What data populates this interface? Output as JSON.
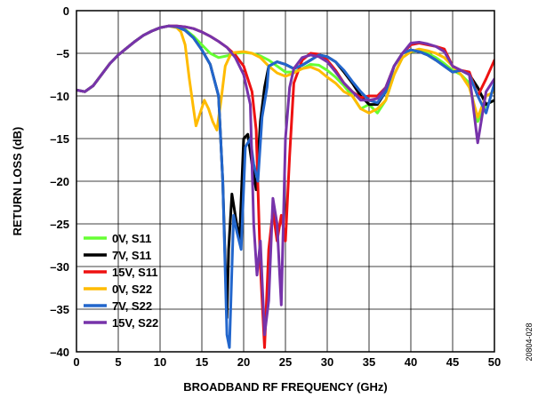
{
  "chart_data": {
    "type": "line",
    "title": "",
    "xlabel": "BROADBAND RF FREQUENCY (GHz)",
    "ylabel": "RETURN LOSS (dB)",
    "xlim": [
      0,
      50
    ],
    "ylim": [
      -40,
      0
    ],
    "xticks": [
      0,
      5,
      10,
      15,
      20,
      25,
      30,
      35,
      40,
      45,
      50
    ],
    "yticks": [
      0,
      -5,
      -10,
      -15,
      -20,
      -25,
      -30,
      -35,
      -40
    ],
    "xtick_labels": [
      "0",
      "5",
      "10",
      "15",
      "20",
      "25",
      "30",
      "35",
      "40",
      "45",
      "50"
    ],
    "ytick_labels": [
      "0",
      "–5",
      "–10",
      "–15",
      "–20",
      "–25",
      "–30",
      "–35",
      "–40"
    ],
    "grid": true,
    "legend_position": "bottom-left",
    "figure_id": "20804-028",
    "series": [
      {
        "name": "0V, S11",
        "color": "#66ff33",
        "x": [
          0,
          1,
          2,
          3,
          4,
          5,
          6,
          7,
          8,
          9,
          10,
          11,
          12,
          13,
          14,
          15,
          16,
          17,
          18,
          19,
          20,
          21,
          22,
          23,
          24,
          25,
          26,
          27,
          28,
          29,
          30,
          31,
          32,
          33,
          34,
          35,
          36,
          37,
          38,
          39,
          40,
          41,
          42,
          43,
          44,
          45,
          46,
          47,
          48,
          49,
          50
        ],
        "y": [
          -9.3,
          -9.5,
          -8.8,
          -7.5,
          -6.2,
          -5.2,
          -4.4,
          -3.6,
          -2.9,
          -2.4,
          -2.0,
          -1.8,
          -1.9,
          -2.2,
          -3.0,
          -4.0,
          -5.0,
          -5.5,
          -5.3,
          -5.0,
          -4.9,
          -5.0,
          -5.3,
          -5.8,
          -6.5,
          -7.2,
          -7.2,
          -6.8,
          -6.3,
          -6.4,
          -7.0,
          -7.8,
          -8.8,
          -10.0,
          -11.5,
          -11.0,
          -12.0,
          -10.5,
          -7.5,
          -5.5,
          -4.8,
          -4.7,
          -5.0,
          -5.5,
          -6.2,
          -7.0,
          -7.5,
          -8.5,
          -13.0,
          -11.0,
          -10.5
        ]
      },
      {
        "name": "7V, S11",
        "color": "#000000",
        "x": [
          0,
          1,
          2,
          3,
          4,
          5,
          6,
          7,
          8,
          9,
          10,
          11,
          12,
          13,
          14,
          15,
          16,
          17,
          17.5,
          18,
          18.2,
          18.6,
          19.0,
          19.5,
          20.0,
          20.5,
          21.0,
          21.5,
          22.0,
          22.5,
          23,
          24,
          25,
          26,
          27,
          28,
          29,
          30,
          31,
          32,
          33,
          34,
          35,
          36,
          37,
          38,
          39,
          40,
          41,
          42,
          43,
          44,
          45,
          46,
          47,
          48,
          49,
          50
        ],
        "y": [
          -9.3,
          -9.5,
          -8.8,
          -7.5,
          -6.2,
          -5.2,
          -4.4,
          -3.6,
          -2.9,
          -2.4,
          -2.0,
          -1.8,
          -1.9,
          -2.3,
          -3.2,
          -4.6,
          -6.3,
          -10.0,
          -20.0,
          -36.0,
          -28.0,
          -21.5,
          -24.0,
          -27.0,
          -15.0,
          -14.5,
          -18.0,
          -21.0,
          -13.0,
          -9.0,
          -6.5,
          -6.0,
          -6.3,
          -6.8,
          -6.4,
          -5.8,
          -5.2,
          -5.4,
          -6.0,
          -7.2,
          -8.5,
          -10.0,
          -11.0,
          -11.0,
          -9.5,
          -6.5,
          -5.0,
          -4.6,
          -4.8,
          -5.2,
          -5.8,
          -6.5,
          -7.2,
          -7.0,
          -7.5,
          -9.0,
          -11.0,
          -10.5
        ]
      },
      {
        "name": "15V, S11",
        "color": "#ee1111",
        "x": [
          0,
          1,
          2,
          3,
          4,
          5,
          6,
          7,
          8,
          9,
          10,
          11,
          12,
          13,
          14,
          15,
          16,
          17,
          18,
          19,
          20,
          21,
          21.5,
          22.0,
          22.5,
          23.0,
          23.5,
          24.0,
          24.5,
          25.0,
          25.5,
          26,
          27,
          28,
          29,
          30,
          31,
          32,
          33,
          34,
          35,
          36,
          37,
          38,
          39,
          40,
          41,
          42,
          43,
          44,
          45,
          46,
          47,
          48,
          49,
          50
        ],
        "y": [
          -9.3,
          -9.5,
          -8.8,
          -7.5,
          -6.2,
          -5.2,
          -4.4,
          -3.6,
          -2.9,
          -2.4,
          -2.0,
          -1.8,
          -1.8,
          -1.9,
          -2.1,
          -2.5,
          -3.0,
          -3.6,
          -4.3,
          -5.2,
          -6.5,
          -9.5,
          -14.0,
          -30.0,
          -39.5,
          -28.0,
          -23.5,
          -27.0,
          -24.0,
          -27.0,
          -17.0,
          -8.5,
          -5.8,
          -5.0,
          -5.1,
          -5.8,
          -7.0,
          -8.5,
          -9.5,
          -10.2,
          -10.0,
          -10.0,
          -9.0,
          -6.5,
          -5.0,
          -4.0,
          -3.8,
          -4.0,
          -4.2,
          -4.5,
          -6.5,
          -7.0,
          -7.2,
          -10.0,
          -8.0,
          -5.8
        ]
      },
      {
        "name": "0V, S22",
        "color": "#ffbb00",
        "x": [
          0,
          1,
          2,
          3,
          4,
          5,
          6,
          7,
          8,
          9,
          10,
          11,
          12,
          12.5,
          13,
          13.5,
          14,
          14.3,
          14.8,
          15.3,
          15.8,
          16.3,
          16.8,
          17.3,
          17.8,
          18.5,
          19,
          20,
          21,
          22,
          23,
          24,
          25,
          26,
          27,
          28,
          29,
          30,
          31,
          32,
          33,
          34,
          35,
          36,
          37,
          38,
          39,
          40,
          41,
          42,
          43,
          44,
          45,
          46,
          47,
          48,
          49,
          50
        ],
        "y": [
          -9.3,
          -9.5,
          -8.8,
          -7.5,
          -6.2,
          -5.2,
          -4.4,
          -3.6,
          -2.9,
          -2.4,
          -2.0,
          -1.8,
          -2.0,
          -2.5,
          -4.0,
          -8.0,
          -11.5,
          -13.5,
          -12.0,
          -10.5,
          -11.5,
          -13.0,
          -14.0,
          -10.5,
          -6.5,
          -5.0,
          -4.9,
          -4.8,
          -5.0,
          -5.5,
          -6.5,
          -7.3,
          -7.7,
          -7.3,
          -6.8,
          -6.6,
          -7.0,
          -7.8,
          -8.5,
          -9.5,
          -10.0,
          -11.5,
          -12.0,
          -11.5,
          -10.5,
          -7.5,
          -5.5,
          -4.8,
          -4.5,
          -4.7,
          -5.0,
          -5.5,
          -6.5,
          -7.5,
          -9.0,
          -12.5,
          -10.0,
          -9.5
        ]
      },
      {
        "name": "7V, S22",
        "color": "#2266cc",
        "x": [
          0,
          1,
          2,
          3,
          4,
          5,
          6,
          7,
          8,
          9,
          10,
          11,
          12,
          13,
          14,
          15,
          16,
          17,
          17.5,
          18,
          18.3,
          18.8,
          19.2,
          19.7,
          20.2,
          20.8,
          21.2,
          21.7,
          22.2,
          22.8,
          23,
          24,
          25,
          26,
          27,
          28,
          29,
          30,
          31,
          32,
          33,
          34,
          35,
          36,
          37,
          38,
          39,
          40,
          41,
          42,
          43,
          44,
          45,
          46,
          47,
          48,
          49,
          50
        ],
        "y": [
          -9.3,
          -9.5,
          -8.8,
          -7.5,
          -6.2,
          -5.2,
          -4.4,
          -3.6,
          -2.9,
          -2.4,
          -2.0,
          -1.8,
          -1.9,
          -2.3,
          -3.2,
          -4.6,
          -6.3,
          -10.0,
          -20.0,
          -38.0,
          -39.5,
          -24.0,
          -26.0,
          -28.0,
          -16.0,
          -15.0,
          -18.0,
          -20.0,
          -12.5,
          -9.0,
          -6.5,
          -6.0,
          -6.3,
          -6.8,
          -6.4,
          -5.8,
          -5.2,
          -5.4,
          -6.0,
          -7.0,
          -8.3,
          -9.5,
          -10.5,
          -10.8,
          -9.5,
          -6.5,
          -5.0,
          -4.6,
          -4.8,
          -5.2,
          -5.8,
          -6.5,
          -7.2,
          -7.0,
          -7.5,
          -10.0,
          -12.0,
          -8.5
        ]
      },
      {
        "name": "15V, S22",
        "color": "#7733aa",
        "x": [
          0,
          1,
          2,
          3,
          4,
          5,
          6,
          7,
          8,
          9,
          10,
          11,
          12,
          13,
          14,
          15,
          16,
          17,
          18,
          19,
          20,
          20.8,
          21.2,
          21.6,
          22.0,
          22.5,
          23.0,
          23.5,
          24.0,
          24.5,
          25.0,
          25.5,
          26,
          27,
          28,
          29,
          30,
          31,
          32,
          33,
          34,
          35,
          36,
          37,
          38,
          39,
          40,
          41,
          42,
          43,
          44,
          45,
          46,
          47,
          48,
          49,
          50
        ],
        "y": [
          -9.3,
          -9.5,
          -8.8,
          -7.5,
          -6.2,
          -5.2,
          -4.4,
          -3.6,
          -2.9,
          -2.4,
          -2.0,
          -1.8,
          -1.8,
          -1.9,
          -2.1,
          -2.5,
          -3.0,
          -3.6,
          -4.3,
          -5.5,
          -7.5,
          -11.0,
          -25.0,
          -31.0,
          -27.0,
          -38.0,
          -34.0,
          -22.0,
          -25.0,
          -34.5,
          -15.0,
          -9.0,
          -6.8,
          -5.5,
          -5.2,
          -5.4,
          -6.0,
          -7.2,
          -8.5,
          -9.5,
          -10.5,
          -10.5,
          -10.3,
          -9.0,
          -6.5,
          -5.0,
          -3.8,
          -3.7,
          -3.9,
          -4.2,
          -4.8,
          -6.5,
          -7.0,
          -7.5,
          -15.5,
          -9.5,
          -8.0
        ]
      }
    ]
  }
}
